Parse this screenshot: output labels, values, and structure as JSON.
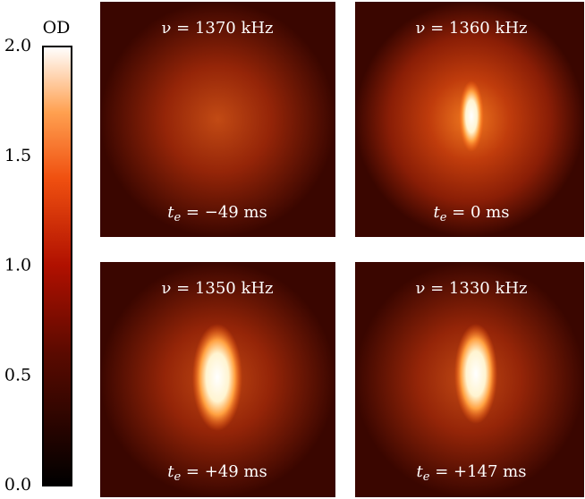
{
  "colorbar": {
    "label": "OD",
    "ticks": [
      "2.0",
      "1.5",
      "1.0",
      "0.5",
      "0.0"
    ]
  },
  "panels": [
    {
      "nu_label": "ν = 1370 kHz",
      "t_symbol": "t",
      "t_sub": "e",
      "t_label": " = −49 ms"
    },
    {
      "nu_label": "ν = 1360 kHz",
      "t_symbol": "t",
      "t_sub": "e",
      "t_label": " = 0 ms"
    },
    {
      "nu_label": "ν = 1350 kHz",
      "t_symbol": "t",
      "t_sub": "e",
      "t_label": " = +49 ms"
    },
    {
      "nu_label": "ν = 1330 kHz",
      "t_symbol": "t",
      "t_sub": "e",
      "t_label": " = +147 ms"
    }
  ]
}
